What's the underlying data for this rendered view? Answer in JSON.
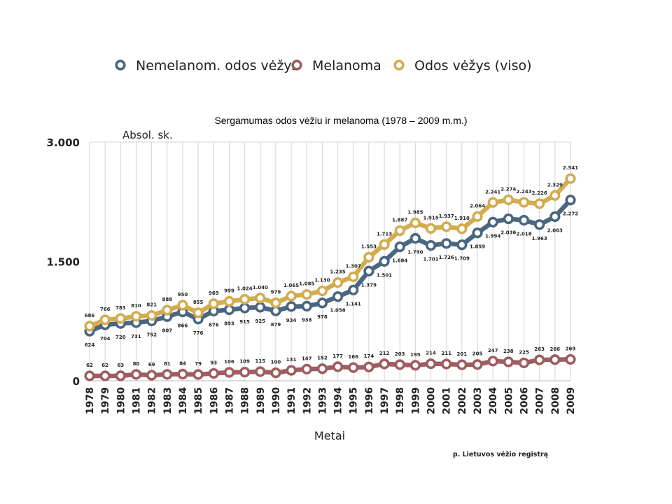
{
  "chart_data": {
    "type": "line",
    "title": "Sergamumas odos vėžiu ir melanoma (1978 – 2009 m.m.)",
    "ylabel": "Absol. sk.",
    "xlabel": "Metai",
    "source": "p. Lietuvos vėžio registrą",
    "ylim": [
      0,
      3000
    ],
    "yticks": [
      {
        "value": 0,
        "label": "0"
      },
      {
        "value": 1500,
        "label": "1.500"
      },
      {
        "value": 3000,
        "label": "3.000"
      }
    ],
    "grid": "vertical",
    "legend_position": "top",
    "x": [
      "1978",
      "1979",
      "1980",
      "1981",
      "1982",
      "1983",
      "1984",
      "1985",
      "1986",
      "1987",
      "1988",
      "1989",
      "1990",
      "1991",
      "1992",
      "1993",
      "1994",
      "1995",
      "1996",
      "1997",
      "1998",
      "1999",
      "2000",
      "2001",
      "2002",
      "2003",
      "2004",
      "2005",
      "2006",
      "2007",
      "2008",
      "2009"
    ],
    "series": [
      {
        "name": "Nemelanom. odos vėžys",
        "color": "#4a6680",
        "label_position": "below",
        "values": [
          624,
          704,
          720,
          731,
          752,
          807,
          866,
          776,
          876,
          893,
          915,
          925,
          879,
          934,
          938,
          978,
          1058,
          1141,
          1379,
          1501,
          1684,
          1790,
          1701,
          1726,
          1709,
          1859,
          1994,
          2036,
          2018,
          1963,
          2063,
          2272
        ],
        "labels": [
          "624",
          "704",
          "720",
          "731",
          "752",
          "807",
          "866",
          "776",
          "876",
          "893",
          "915",
          "925",
          "879",
          "934",
          "938",
          "978",
          "1.058",
          "1.141",
          "1.379",
          "1.501",
          "1.684",
          "1.790",
          "1.701",
          "1.726",
          "1.709",
          "1.859",
          "1.994",
          "2.036",
          "2.018",
          "1.963",
          "2.063",
          "2.272"
        ]
      },
      {
        "name": "Melanoma",
        "color": "#9e5d5f",
        "label_position": "above",
        "values": [
          62,
          62,
          63,
          80,
          69,
          81,
          84,
          79,
          93,
          106,
          109,
          115,
          100,
          131,
          147,
          152,
          177,
          166,
          174,
          212,
          203,
          195,
          214,
          211,
          201,
          205,
          247,
          238,
          225,
          263,
          266,
          269
        ],
        "labels": [
          "62",
          "62",
          "63",
          "80",
          "69",
          "81",
          "84",
          "79",
          "93",
          "106",
          "109",
          "115",
          "100",
          "131",
          "147",
          "152",
          "177",
          "166",
          "174",
          "212",
          "203",
          "195",
          "214",
          "211",
          "201",
          "205",
          "247",
          "238",
          "225",
          "263",
          "266",
          "269"
        ]
      },
      {
        "name": "Odos vėžys (viso)",
        "color": "#d3ac50",
        "label_position": "above",
        "values": [
          686,
          766,
          783,
          810,
          821,
          888,
          950,
          855,
          969,
          999,
          1024,
          1040,
          979,
          1065,
          1085,
          1130,
          1235,
          1307,
          1553,
          1713,
          1887,
          1985,
          1915,
          1937,
          1910,
          2064,
          2241,
          2274,
          2243,
          2226,
          2329,
          2541
        ],
        "labels": [
          "686",
          "766",
          "783",
          "810",
          "821",
          "888",
          "950",
          "855",
          "969",
          "999",
          "1.024",
          "1.040",
          "979",
          "1.065",
          "1.085",
          "1.130",
          "1.235",
          "1.307",
          "1.553",
          "1.713",
          "1.887",
          "1.985",
          "1.915",
          "1.937",
          "1.910",
          "2.064",
          "2.241",
          "2.274",
          "2.243",
          "2.226",
          "2.329",
          "2.541"
        ]
      }
    ]
  }
}
